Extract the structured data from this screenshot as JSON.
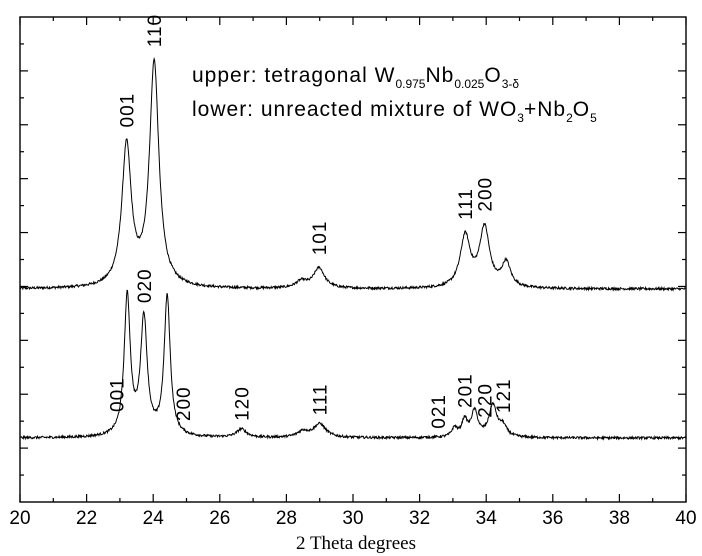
{
  "chart_data": {
    "type": "line",
    "xlabel": "2 Theta degrees",
    "ylabel": "",
    "xlim": [
      20,
      40
    ],
    "x_ticks": [
      "20",
      "22",
      "24",
      "26",
      "28",
      "30",
      "32",
      "34",
      "36",
      "38",
      "40"
    ],
    "grid": false,
    "legend": {
      "upper": {
        "prefix": "upper: tetragonal W",
        "sub1": "0.975",
        "mid1": "Nb",
        "sub2": "0.025",
        "mid2": "O",
        "sub3": "3-δ"
      },
      "lower": {
        "prefix": "lower: unreacted mixture of W",
        "mid1": "O",
        "sub1": "3",
        "mid2": "+Nb",
        "sub2": "2",
        "mid3": "O",
        "sub3": "5"
      }
    },
    "series": [
      {
        "name": "upper",
        "peaks": [
          {
            "x": 23.2,
            "h": 0.52,
            "w": 0.17
          },
          {
            "x": 24.03,
            "h": 0.83,
            "w": 0.17
          },
          {
            "x": 28.45,
            "h": 0.025,
            "w": 0.2
          },
          {
            "x": 28.98,
            "h": 0.075,
            "w": 0.2
          },
          {
            "x": 33.37,
            "h": 0.19,
            "w": 0.18
          },
          {
            "x": 33.95,
            "h": 0.22,
            "w": 0.18
          },
          {
            "x": 34.6,
            "h": 0.09,
            "w": 0.16
          }
        ],
        "labels": [
          {
            "text": "001",
            "x": 23.2
          },
          {
            "text": "110",
            "x": 24.03
          },
          {
            "text": "101",
            "x": 28.98
          },
          {
            "text": "111",
            "x": 33.37
          },
          {
            "text": "200",
            "x": 33.95
          }
        ]
      },
      {
        "name": "lower",
        "peaks": [
          {
            "x": 23.22,
            "h": 0.93,
            "w": 0.11
          },
          {
            "x": 23.72,
            "h": 0.78,
            "w": 0.12
          },
          {
            "x": 24.42,
            "h": 0.93,
            "w": 0.11
          },
          {
            "x": 26.65,
            "h": 0.055,
            "w": 0.18
          },
          {
            "x": 28.5,
            "h": 0.04,
            "w": 0.2
          },
          {
            "x": 29.0,
            "h": 0.09,
            "w": 0.22
          },
          {
            "x": 33.05,
            "h": 0.06,
            "w": 0.1
          },
          {
            "x": 33.35,
            "h": 0.11,
            "w": 0.1
          },
          {
            "x": 33.65,
            "h": 0.17,
            "w": 0.12
          },
          {
            "x": 34.2,
            "h": 0.21,
            "w": 0.14
          },
          {
            "x": 34.5,
            "h": 0.07,
            "w": 0.14
          }
        ],
        "labels": [
          {
            "text": "001",
            "x": 22.9
          },
          {
            "text": "020",
            "x": 23.72
          },
          {
            "text": "200",
            "x": 24.9
          },
          {
            "text": "120",
            "x": 26.65
          },
          {
            "text": "111",
            "x": 29.0
          },
          {
            "text": "021",
            "x": 32.55
          },
          {
            "text": "201",
            "x": 33.35
          },
          {
            "text": "220",
            "x": 33.95
          },
          {
            "text": "121",
            "x": 34.5
          }
        ]
      }
    ]
  }
}
